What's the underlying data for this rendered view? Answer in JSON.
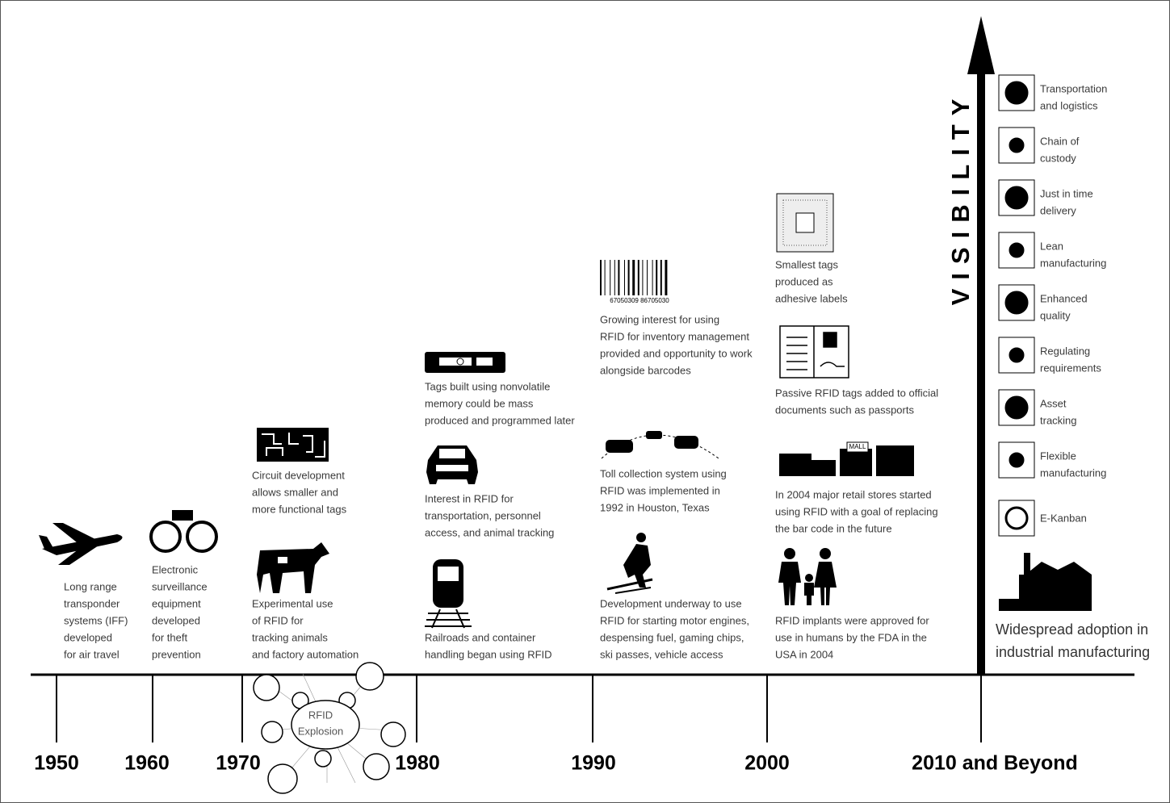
{
  "columns": [
    {
      "year": "1950",
      "events": [
        [
          "Long range",
          "transponder",
          "systems (IFF)",
          "developed",
          "for air travel"
        ]
      ]
    },
    {
      "year": "1960",
      "events": [
        [
          "Electronic",
          "surveillance",
          "equipment",
          "developed",
          "for theft",
          "prevention"
        ]
      ]
    },
    {
      "year": "1970",
      "events": [
        [
          "Circuit development",
          "allows smaller and",
          "more functional tags"
        ],
        [
          "Experimental use",
          "of RFID for",
          "tracking animals",
          "and factory automation"
        ]
      ]
    },
    {
      "year": "1980",
      "events": [
        [
          "Tags built using nonvolatile",
          "memory could be mass",
          "produced and programmed later"
        ],
        [
          "Interest in RFID for",
          "transportation, personnel",
          "access, and animal tracking"
        ],
        [
          "Railroads and container",
          "handling began using RFID"
        ]
      ]
    },
    {
      "year": "1990",
      "events": [
        [
          "Growing interest for using",
          "RFID for inventory management",
          "provided and opportunity to work",
          "alongside barcodes"
        ],
        [
          "Toll collection system using",
          "RFID was implemented in",
          "1992 in Houston, Texas"
        ],
        [
          "Development underway to use",
          "RFID for starting motor engines,",
          "despensing fuel, gaming chips,",
          "ski passes, vehicle access"
        ]
      ]
    },
    {
      "year": "2000",
      "events": [
        [
          "Smallest tags",
          "produced as",
          "adhesive labels"
        ],
        [
          "Passive RFID tags added to official",
          "documents such as passports"
        ],
        [
          "In 2004 major retail stores started",
          "using RFID with a goal of replacing",
          "the bar code in the future"
        ],
        [
          "RFID implants were approved for",
          "use in humans by the FDA in the",
          "USA in 2004"
        ]
      ]
    },
    {
      "year": "2010 and Beyond"
    }
  ],
  "explosion": [
    "RFID",
    "Explosion"
  ],
  "axis_label": "VISIBILITY",
  "benefits": [
    [
      "Transportation",
      "and logistics"
    ],
    [
      "Chain of",
      "custody"
    ],
    [
      "Just in time",
      "delivery"
    ],
    [
      "Lean",
      "manufacturing"
    ],
    [
      "Enhanced",
      "quality"
    ],
    [
      "Regulating",
      "requirements"
    ],
    [
      "Asset",
      "tracking"
    ],
    [
      "Flexible",
      "manufacturing"
    ],
    [
      "E-Kanban"
    ]
  ],
  "conclusion": [
    "Widespread adoption in",
    "industrial manufacturing"
  ],
  "icon_texts": {
    "barcode": "67050309 86705030",
    "mall": "MALL"
  }
}
